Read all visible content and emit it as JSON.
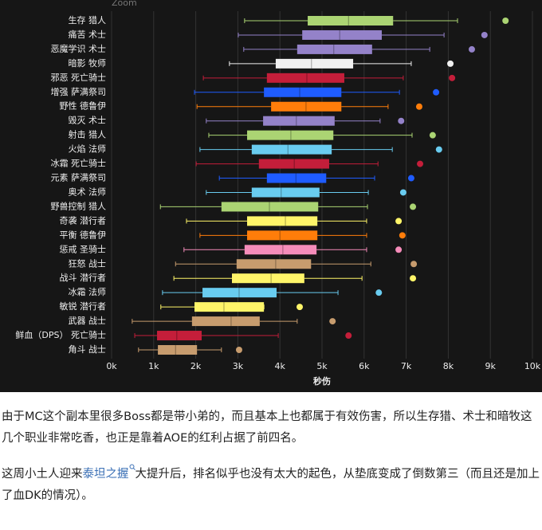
{
  "chart_data": {
    "type": "box",
    "zoom_label": "Zoom",
    "xlabel": "秒伤",
    "xlim": [
      0,
      10000
    ],
    "xticks": [
      {
        "value": 0,
        "label": "0k"
      },
      {
        "value": 1000,
        "label": "1k"
      },
      {
        "value": 2000,
        "label": "2k"
      },
      {
        "value": 3000,
        "label": "3k"
      },
      {
        "value": 4000,
        "label": "4k"
      },
      {
        "value": 5000,
        "label": "5k"
      },
      {
        "value": 6000,
        "label": "6k"
      },
      {
        "value": 7000,
        "label": "7k"
      },
      {
        "value": 8000,
        "label": "8k"
      },
      {
        "value": 9000,
        "label": "9k"
      },
      {
        "value": 10000,
        "label": "10k"
      }
    ],
    "grid": true,
    "boxes": [
      {
        "label": "生存 猎人",
        "color": "#abd473",
        "whisker_low": 3160,
        "q1": 4660,
        "median": 5630,
        "q3": 6690,
        "whisker_high": 8220,
        "outlier": 9360
      },
      {
        "label": "痛苦 术士",
        "color": "#9482c9",
        "whisker_low": 3010,
        "q1": 4530,
        "median": 5420,
        "q3": 6420,
        "whisker_high": 7900,
        "outlier": 8860
      },
      {
        "label": "恶魔学识 术士",
        "color": "#9482c9",
        "whisker_low": 3140,
        "q1": 4410,
        "median": 5280,
        "q3": 6190,
        "whisker_high": 7560,
        "outlier": 8560
      },
      {
        "label": "暗影 牧师",
        "color": "#f0f0f0",
        "whisker_low": 2800,
        "q1": 3900,
        "median": 4750,
        "q3": 5740,
        "whisker_high": 7120,
        "outlier": 8050
      },
      {
        "label": "邪恶 死亡骑士",
        "color": "#c41e3a",
        "whisker_low": 2180,
        "q1": 3690,
        "median": 4640,
        "q3": 5530,
        "whisker_high": 6930,
        "outlier": 8090
      },
      {
        "label": "增强 萨满祭司",
        "color": "#1f5cff",
        "whisker_low": 1970,
        "q1": 3620,
        "median": 4470,
        "q3": 5460,
        "whisker_high": 6840,
        "outlier": 7710
      },
      {
        "label": "野性 德鲁伊",
        "color": "#ff7d0a",
        "whisker_low": 2030,
        "q1": 3790,
        "median": 4620,
        "q3": 5460,
        "whisker_high": 6570,
        "outlier": 7310
      },
      {
        "label": "毁灭 术士",
        "color": "#9482c9",
        "whisker_low": 2250,
        "q1": 3600,
        "median": 4390,
        "q3": 5300,
        "whisker_high": 6380,
        "outlier": 6880
      },
      {
        "label": "射击 猎人",
        "color": "#abd473",
        "whisker_low": 2310,
        "q1": 3220,
        "median": 4260,
        "q3": 5270,
        "whisker_high": 7140,
        "outlier": 7630
      },
      {
        "label": "火焰 法师",
        "color": "#69ccf0",
        "whisker_low": 2100,
        "q1": 3330,
        "median": 4190,
        "q3": 5230,
        "whisker_high": 6670,
        "outlier": 7780
      },
      {
        "label": "冰霜 死亡骑士",
        "color": "#c41e3a",
        "whisker_low": 2010,
        "q1": 3500,
        "median": 4340,
        "q3": 5170,
        "whisker_high": 6330,
        "outlier": 7330
      },
      {
        "label": "元素 萨满祭司",
        "color": "#1f5cff",
        "whisker_low": 2560,
        "q1": 3690,
        "median": 4380,
        "q3": 5100,
        "whisker_high": 6250,
        "outlier": 7120
      },
      {
        "label": "奥术 法师",
        "color": "#69ccf0",
        "whisker_low": 2250,
        "q1": 3330,
        "median": 4030,
        "q3": 4940,
        "whisker_high": 6100,
        "outlier": 6930
      },
      {
        "label": "野兽控制 猎人",
        "color": "#abd473",
        "whisker_low": 1160,
        "q1": 2610,
        "median": 3750,
        "q3": 4910,
        "whisker_high": 6080,
        "outlier": 7160
      },
      {
        "label": "奇袭 潜行者",
        "color": "#fff569",
        "whisker_low": 1780,
        "q1": 3220,
        "median": 4130,
        "q3": 4890,
        "whisker_high": 6060,
        "outlier": 6820
      },
      {
        "label": "平衡 德鲁伊",
        "color": "#ff7d0a",
        "whisker_low": 2100,
        "q1": 3220,
        "median": 4000,
        "q3": 4890,
        "whisker_high": 6060,
        "outlier": 6910
      },
      {
        "label": "惩戒 圣骑士",
        "color": "#f58cba",
        "whisker_low": 1720,
        "q1": 3160,
        "median": 4070,
        "q3": 4870,
        "whisker_high": 6060,
        "outlier": 6820
      },
      {
        "label": "狂怒 战士",
        "color": "#c79c6e",
        "whisker_low": 1520,
        "q1": 2970,
        "median": 3900,
        "q3": 4740,
        "whisker_high": 6160,
        "outlier": 7180
      },
      {
        "label": "战斗 潜行者",
        "color": "#fff569",
        "whisker_low": 1480,
        "q1": 2860,
        "median": 3790,
        "q3": 4580,
        "whisker_high": 5950,
        "outlier": 7160
      },
      {
        "label": "冰霜 法师",
        "color": "#69ccf0",
        "whisker_low": 1210,
        "q1": 2160,
        "median": 3030,
        "q3": 3920,
        "whisker_high": 5380,
        "outlier": 6350
      },
      {
        "label": "敏锐 潜行者",
        "color": "#fff569",
        "whisker_low": 1170,
        "q1": 1970,
        "median": 2670,
        "q3": 3620,
        "whisker_high": 3620,
        "outlier": 4470
      },
      {
        "label": "武器 战士",
        "color": "#c79c6e",
        "whisker_low": 490,
        "q1": 1910,
        "median": 2840,
        "q3": 3520,
        "whisker_high": 4410,
        "outlier": 5250
      },
      {
        "label": "鲜血（DPS） 死亡骑士",
        "color": "#c41e3a",
        "whisker_low": 550,
        "q1": 1080,
        "median": 1550,
        "q3": 2140,
        "whisker_high": 3960,
        "outlier": 5630
      },
      {
        "label": "角斗 战士",
        "color": "#c79c6e",
        "whisker_low": 640,
        "q1": 1100,
        "median": 1520,
        "q3": 2030,
        "whisker_high": 2610,
        "outlier": 3030
      }
    ]
  },
  "article": {
    "p1": "由于MC这个副本里很多Boss都是带小弟的，而且基本上也都属于有效伤害，所以生存猎、术士和暗牧这几个职业非常吃香，也正是靠着AOE的红利占据了前四名。",
    "p2_before": "这周小土人迎来",
    "p2_link": "泰坦之握",
    "p2_after": "大提升后，排名似乎也没有太大的起色，从垫底变成了倒数第三（而且还是加上了血DK的情况）。"
  }
}
